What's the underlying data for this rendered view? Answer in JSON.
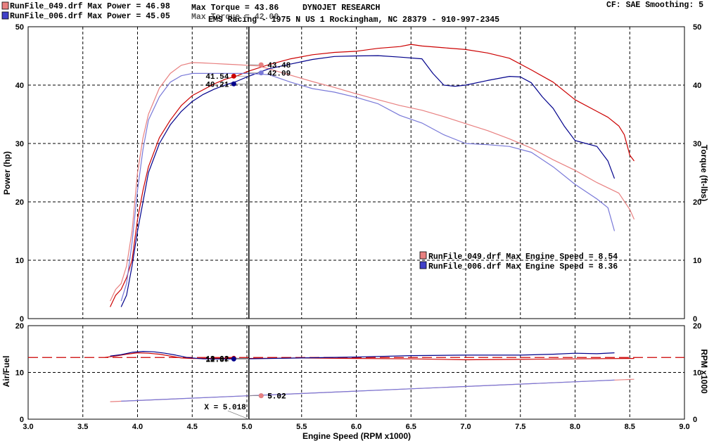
{
  "header": {
    "run1_label": "RunFile_049.drf Max Power = 46.98",
    "run2_label": "RunFile_006.drf Max Power = 45.05",
    "max_torque1": "Max Torque = 43.86",
    "max_torque2": "Max Torque = 42.00",
    "brand": "DYNOJET RESEARCH",
    "shop": "EMS Racing - 1975 N US 1 Rockingham, NC 28379 - 910-997-2345",
    "settings": "CF: SAE  Smoothing: 5"
  },
  "legend": {
    "run1": "RunFile_049.drf Max Engine Speed = 8.54",
    "run2": "RunFile_006.drf Max Engine Speed = 8.36"
  },
  "colors": {
    "run1_power": "#cc0000",
    "run1_torque": "#e88080",
    "run2_power": "#00008b",
    "run2_torque": "#7878d8"
  },
  "chart_data": [
    {
      "type": "line",
      "xlabel": "Engine Speed (RPM x1000)",
      "ylabel": "Power (hp)",
      "y2label": "Torque (ft-lbs)",
      "xlim": [
        3.0,
        9.0
      ],
      "ylim": [
        0,
        50
      ],
      "y2lim": [
        0,
        50
      ],
      "xticks": [
        "3.0",
        "3.5",
        "4.0",
        "4.5",
        "5.0",
        "5.5",
        "6.0",
        "6.5",
        "7.0",
        "7.5",
        "8.0",
        "8.5",
        "9.0"
      ],
      "yticks": [
        "0",
        "10",
        "20",
        "30",
        "40",
        "50"
      ],
      "grid": true,
      "series": [
        {
          "name": "RunFile_049.drf",
          "measure": "power",
          "axis": "left",
          "x": [
            3.75,
            3.8,
            3.85,
            3.9,
            3.95,
            4.0,
            4.05,
            4.1,
            4.2,
            4.3,
            4.4,
            4.5,
            4.6,
            4.7,
            4.8,
            4.9,
            5.0,
            5.2,
            5.4,
            5.6,
            5.8,
            6.0,
            6.2,
            6.4,
            6.5,
            6.6,
            6.8,
            7.0,
            7.2,
            7.4,
            7.6,
            7.8,
            8.0,
            8.2,
            8.3,
            8.4,
            8.45,
            8.5,
            8.54
          ],
          "y": [
            2.0,
            4.0,
            5.0,
            7.0,
            10.0,
            17.0,
            22.0,
            26.0,
            31.0,
            34.0,
            36.5,
            38.2,
            39.2,
            40.2,
            41.0,
            41.5,
            42.3,
            43.5,
            44.5,
            45.2,
            45.6,
            45.8,
            46.3,
            46.6,
            46.98,
            46.7,
            46.4,
            46.1,
            45.5,
            44.6,
            42.6,
            40.5,
            37.5,
            35.5,
            34.5,
            33.0,
            31.5,
            28.0,
            27.0
          ]
        },
        {
          "name": "RunFile_049.drf",
          "measure": "torque",
          "axis": "right",
          "x": [
            3.75,
            3.8,
            3.85,
            3.9,
            3.95,
            4.0,
            4.05,
            4.1,
            4.2,
            4.3,
            4.4,
            4.5,
            4.6,
            4.7,
            4.8,
            4.9,
            5.0,
            5.1,
            5.2,
            5.4,
            5.6,
            5.8,
            6.0,
            6.2,
            6.4,
            6.6,
            6.8,
            7.0,
            7.2,
            7.4,
            7.6,
            7.8,
            8.0,
            8.2,
            8.4,
            8.5,
            8.54
          ],
          "y": [
            3.0,
            5.0,
            6.0,
            9.0,
            15.0,
            25.0,
            31.0,
            35.0,
            39.5,
            42.0,
            43.4,
            43.86,
            43.8,
            43.7,
            43.6,
            43.5,
            43.4,
            43.3,
            42.8,
            41.7,
            40.6,
            39.6,
            38.5,
            37.5,
            36.5,
            35.7,
            34.6,
            33.4,
            32.2,
            30.8,
            29.2,
            27.2,
            25.4,
            23.3,
            21.5,
            18.7,
            17.0
          ]
        },
        {
          "name": "RunFile_006.drf",
          "measure": "power",
          "axis": "left",
          "x": [
            3.85,
            3.9,
            3.95,
            4.0,
            4.05,
            4.1,
            4.2,
            4.3,
            4.4,
            4.5,
            4.6,
            4.7,
            4.8,
            4.9,
            5.0,
            5.2,
            5.4,
            5.6,
            5.8,
            6.0,
            6.2,
            6.4,
            6.6,
            6.7,
            6.8,
            6.9,
            7.0,
            7.2,
            7.4,
            7.5,
            7.6,
            7.7,
            7.8,
            7.9,
            8.0,
            8.1,
            8.2,
            8.3,
            8.36
          ],
          "y": [
            2.0,
            4.0,
            9.0,
            15.0,
            20.0,
            25.0,
            30.0,
            33.2,
            35.5,
            37.2,
            38.4,
            39.3,
            40.0,
            40.6,
            41.4,
            42.8,
            43.6,
            44.4,
            44.9,
            45.0,
            45.05,
            44.8,
            44.5,
            42.0,
            40.0,
            39.8,
            40.0,
            40.8,
            41.5,
            41.4,
            40.4,
            38.0,
            36.0,
            33.0,
            30.5,
            30.0,
            29.5,
            27.0,
            24.0
          ]
        },
        {
          "name": "RunFile_006.drf",
          "measure": "torque",
          "axis": "right",
          "x": [
            3.85,
            3.9,
            3.95,
            4.0,
            4.05,
            4.1,
            4.2,
            4.3,
            4.4,
            4.5,
            4.6,
            4.7,
            4.8,
            4.9,
            5.0,
            5.1,
            5.2,
            5.4,
            5.6,
            5.8,
            6.0,
            6.2,
            6.4,
            6.6,
            6.8,
            7.0,
            7.2,
            7.4,
            7.6,
            7.8,
            8.0,
            8.2,
            8.3,
            8.36
          ],
          "y": [
            3.0,
            6.0,
            13.0,
            22.0,
            29.0,
            34.0,
            38.0,
            40.5,
            41.6,
            42.0,
            42.0,
            42.0,
            42.0,
            42.0,
            42.0,
            41.9,
            41.8,
            40.5,
            39.4,
            38.8,
            37.9,
            36.8,
            34.8,
            33.5,
            31.5,
            30.0,
            29.8,
            29.5,
            28.5,
            26.0,
            23.0,
            20.5,
            19.0,
            15.0
          ]
        }
      ],
      "cursor": {
        "x": 5.018,
        "label": "X = 5.018",
        "values": [
          {
            "series": "RunFile_049.drf power",
            "x": 4.88,
            "y": 41.54,
            "label": "41.54"
          },
          {
            "series": "RunFile_006.drf power",
            "x": 4.88,
            "y": 40.21,
            "label": "40.21"
          },
          {
            "series": "RunFile_049.drf torque",
            "x": 5.13,
            "y": 43.48,
            "label": "43.48"
          },
          {
            "series": "RunFile_006.drf torque",
            "x": 5.13,
            "y": 42.09,
            "label": "42.09"
          }
        ]
      }
    },
    {
      "type": "line",
      "xlabel": "Engine Speed (RPM x1000)",
      "ylabel": "Air/Fuel",
      "y2label": "RPM x1000",
      "xlim": [
        3.0,
        9.0
      ],
      "ylim": [
        0,
        20
      ],
      "y2lim": [
        0,
        20
      ],
      "yticks": [
        "0",
        "10",
        "20"
      ],
      "reference_line": 13.2,
      "series": [
        {
          "name": "RunFile_049.drf",
          "measure": "air_fuel",
          "axis": "left",
          "x": [
            3.7,
            3.8,
            3.9,
            4.0,
            4.1,
            4.2,
            4.3,
            4.4,
            4.5,
            4.6,
            4.8,
            5.0,
            5.5,
            6.0,
            6.5,
            7.0,
            7.5,
            8.0,
            8.5,
            8.54
          ],
          "y": [
            13.2,
            13.5,
            13.9,
            14.2,
            14.1,
            13.9,
            13.5,
            13.1,
            13.0,
            13.0,
            13.02,
            13.0,
            13.1,
            13.0,
            12.9,
            12.7,
            12.8,
            12.9,
            13.0,
            13.0
          ]
        },
        {
          "name": "RunFile_006.drf",
          "measure": "air_fuel",
          "axis": "left",
          "x": [
            3.75,
            3.85,
            3.95,
            4.05,
            4.15,
            4.25,
            4.35,
            4.45,
            4.6,
            4.8,
            5.0,
            5.5,
            6.0,
            6.5,
            7.0,
            7.5,
            7.8,
            8.0,
            8.2,
            8.36
          ],
          "y": [
            13.5,
            13.8,
            14.3,
            14.5,
            14.4,
            14.1,
            13.7,
            13.2,
            12.9,
            12.87,
            12.9,
            13.1,
            13.3,
            13.6,
            13.7,
            13.7,
            13.9,
            14.1,
            14.0,
            14.2
          ]
        },
        {
          "name": "RunFile_049.drf",
          "measure": "rpm",
          "axis": "right",
          "x": [
            3.75,
            8.54
          ],
          "y": [
            3.75,
            8.54
          ]
        },
        {
          "name": "RunFile_006.drf",
          "measure": "rpm",
          "axis": "right",
          "x": [
            3.85,
            8.36
          ],
          "y": [
            3.85,
            8.36
          ]
        }
      ],
      "cursor": {
        "x": 5.018,
        "label": "X = 5.018",
        "values": [
          {
            "series": "RunFile_049.drf air_fuel",
            "x": 4.88,
            "y": 13.02,
            "label": "13.02"
          },
          {
            "series": "RunFile_006.drf air_fuel",
            "x": 4.88,
            "y": 12.87,
            "label": "12.87"
          },
          {
            "series": "RunFile_006.drf rpm",
            "x": 5.13,
            "y": 5.02,
            "label": "5.02"
          },
          {
            "series": "RunFile_049.drf rpm",
            "x": 5.13,
            "y": 5.02,
            "label": "5.02"
          }
        ]
      }
    }
  ]
}
